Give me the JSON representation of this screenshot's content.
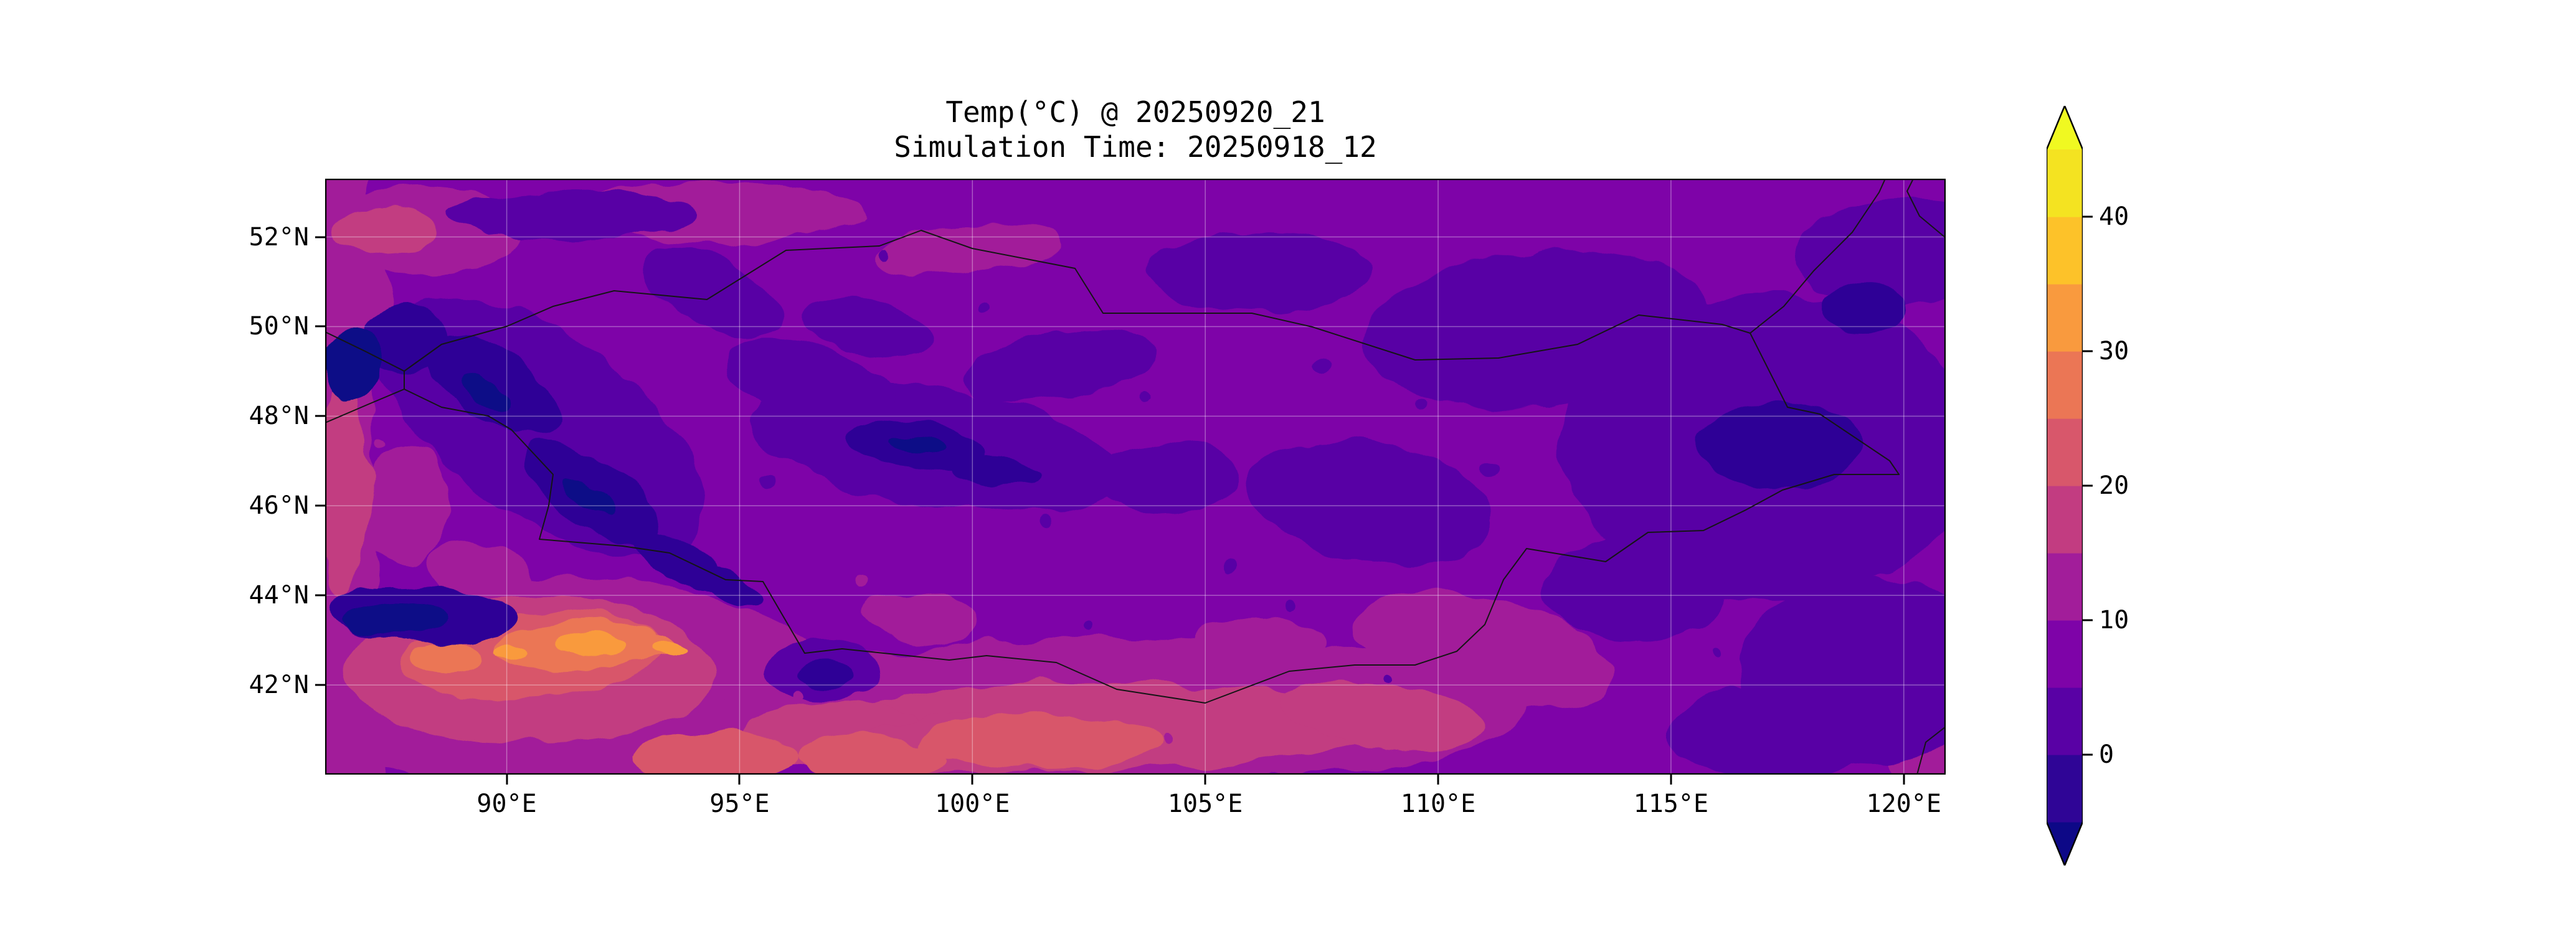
{
  "figure": {
    "title": "Temp(°C) @ 20250920_21",
    "subtitle": "Simulation Time: 20250918_12"
  },
  "chart_data": {
    "type": "heatmap",
    "title": "Temp(°C) @ 20250920_21",
    "subtitle": "Simulation Time: 20250918_12",
    "variable": "Temp",
    "units": "°C",
    "valid_time": "20250920_21",
    "simulation_time": "20250918_12",
    "x_axis": {
      "name": "longitude",
      "range": [
        86.1,
        120.9
      ],
      "ticks": [
        90,
        95,
        100,
        105,
        110,
        115,
        120
      ],
      "tick_labels": [
        "90°E",
        "95°E",
        "100°E",
        "105°E",
        "110°E",
        "115°E",
        "120°E"
      ]
    },
    "y_axis": {
      "name": "latitude",
      "range": [
        40.0,
        53.3
      ],
      "ticks": [
        52,
        50,
        48,
        46,
        44,
        42
      ],
      "tick_labels": [
        "52°N",
        "50°N",
        "48°N",
        "46°N",
        "44°N",
        "42°N"
      ]
    },
    "colorbar": {
      "range": [
        -5,
        45
      ],
      "level_step": 5,
      "ticks": [
        0,
        10,
        20,
        30,
        40
      ],
      "tick_labels": [
        "0",
        "10",
        "20",
        "30",
        "40"
      ],
      "extend": "both",
      "colormap": "plasma",
      "band_colors": [
        "#2f0596",
        "#5901a5",
        "#7e03a8",
        "#a21d9a",
        "#c23c81",
        "#d8576b",
        "#eb7655",
        "#f99a3e",
        "#fdc229",
        "#f4e321"
      ],
      "under_color": "#0d0887",
      "over_color": "#f0f921"
    },
    "grid": true,
    "overlays": [
      "country borders"
    ],
    "field_features": [
      {
        "area": "Altai mountains, west (~87-95°E, 43-50°N)",
        "approx_value": "-5 to 5 °C, below -5 °C in spots (coldest)"
      },
      {
        "area": "southwest basin (~90-94°E, 42-43.5°N)",
        "approx_value": "25 to 35 °C (warmest)"
      },
      {
        "area": "southern Gobi band (~95-113°E, 41-44°N)",
        "approx_value": "15 to 25 °C"
      },
      {
        "area": "western edge strip (~86-87°E)",
        "approx_value": "10 to 20 °C"
      },
      {
        "area": "east / northeast (~112-121°E, 45-50°N)",
        "approx_value": "0 to 5 °C"
      },
      {
        "area": "background over most of domain",
        "approx_value": "5 to 15 °C"
      }
    ]
  }
}
